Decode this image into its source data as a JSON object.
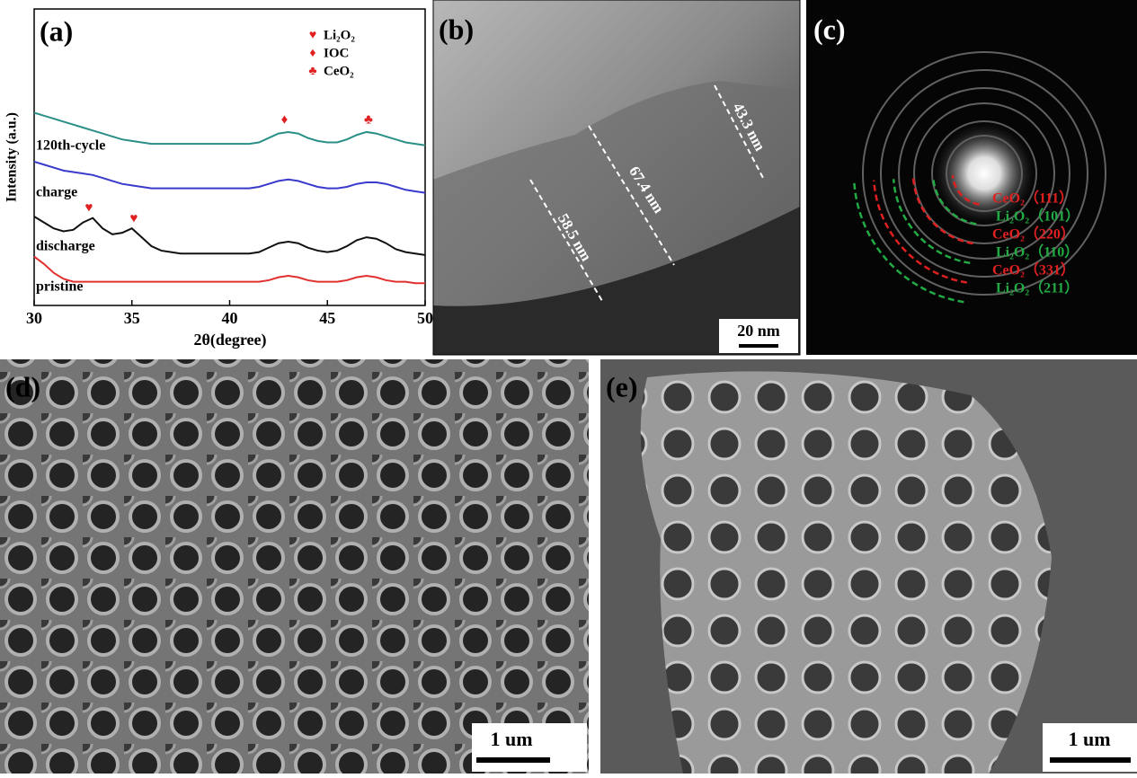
{
  "chart_data": {
    "type": "line",
    "xlabel": "2θ(degree)",
    "ylabel": "Intensity (a.u.)",
    "xlim": [
      30,
      50
    ],
    "xticks": [
      30,
      35,
      40,
      45,
      50
    ],
    "ylim": [
      0,
      100
    ],
    "x": [
      30,
      30.5,
      31,
      31.5,
      32,
      32.5,
      33,
      33.5,
      34,
      34.5,
      35,
      35.5,
      36,
      36.5,
      37,
      37.5,
      38,
      38.5,
      39,
      39.5,
      40,
      40.5,
      41,
      41.5,
      42,
      42.5,
      43,
      43.5,
      44,
      44.5,
      45,
      45.5,
      46,
      46.5,
      47,
      47.5,
      48,
      48.5,
      49,
      49.5,
      50
    ],
    "series": [
      {
        "name": "120th-cycle",
        "color": "#2a8f86",
        "values": [
          65,
          64,
          63,
          62,
          61,
          60,
          59,
          58,
          57,
          56,
          55.5,
          55,
          54.5,
          54.5,
          54.5,
          54.5,
          54.5,
          54.5,
          54.5,
          54.5,
          54.5,
          54.5,
          54.5,
          55,
          56.5,
          58,
          58.5,
          58,
          56.5,
          55.5,
          55,
          55,
          56,
          57.5,
          58.5,
          58,
          57,
          56,
          55,
          54.5,
          54
        ]
      },
      {
        "name": "charge",
        "color": "#3a3acc",
        "values": [
          48.5,
          47.5,
          46.5,
          45.5,
          45,
          44.5,
          44,
          43,
          42,
          41,
          40.5,
          40,
          39.5,
          39.5,
          39.5,
          39.5,
          39.5,
          39.5,
          39.5,
          39.5,
          39.5,
          39.5,
          39.5,
          40,
          41,
          42,
          42.5,
          42,
          41,
          40,
          39.5,
          39.5,
          40,
          41,
          41.5,
          41.5,
          41,
          40,
          39,
          38.5,
          38
        ]
      },
      {
        "name": "discharge",
        "color": "#111111",
        "values": [
          30,
          28,
          26,
          25,
          25.5,
          28,
          29.5,
          26,
          24,
          24.5,
          26,
          23,
          20,
          18.5,
          18,
          17.5,
          17.5,
          17.5,
          17.5,
          17.5,
          17.5,
          17.5,
          17.5,
          18,
          19.5,
          21,
          21.5,
          21,
          19.5,
          18.5,
          18,
          18.5,
          20,
          22,
          23,
          22.5,
          21,
          19,
          18,
          17.5,
          17
        ]
      },
      {
        "name": "pristine",
        "color": "#e03030",
        "values": [
          16.5,
          14,
          11,
          9,
          8,
          8,
          8,
          8,
          8,
          8,
          8,
          8,
          8,
          8,
          8,
          8,
          8,
          8,
          8,
          8,
          8,
          8,
          8,
          8,
          8.5,
          9.5,
          10,
          9.5,
          8.5,
          8,
          8,
          8,
          8.5,
          9.5,
          10,
          9.5,
          8.5,
          8,
          8,
          7.5,
          7.5
        ]
      }
    ],
    "legend": [
      {
        "symbol": "♥",
        "label": "Li₂O₂"
      },
      {
        "symbol": "♦",
        "label": "IOC"
      },
      {
        "symbol": "♣",
        "label": "CeO₂"
      }
    ]
  },
  "panel_labels": [
    "(a)",
    "(b)",
    "(c)",
    "(d)",
    "(e)"
  ],
  "tem": {
    "measurements": [
      "43.3 nm",
      "67.4 nm",
      "58.5 nm"
    ],
    "scale_bar": "20 nm"
  },
  "saed": {
    "rings": [
      {
        "label": "CeO₂（111）",
        "color": "#e02020"
      },
      {
        "label": "Li₂O₂（101）",
        "color": "#22aa44"
      },
      {
        "label": "CeO₂（220）",
        "color": "#e02020"
      },
      {
        "label": "Li₂O₂（110）",
        "color": "#22aa44"
      },
      {
        "label": "CeO₂（331）",
        "color": "#e02020"
      },
      {
        "label": "Li₂O₂（211）",
        "color": "#22aa44"
      }
    ]
  },
  "sem": {
    "scale_bars": [
      "1 um",
      "1 um"
    ]
  }
}
